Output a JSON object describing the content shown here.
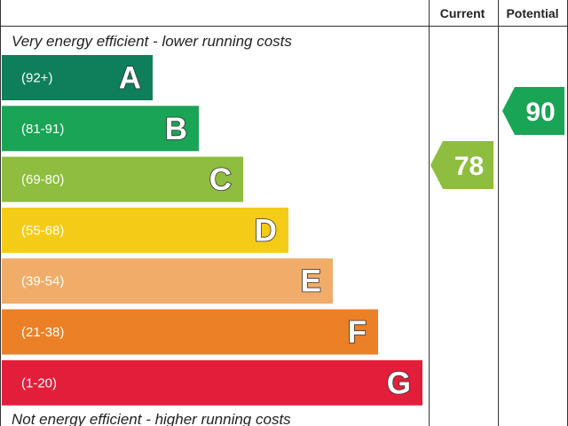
{
  "chart_data": {
    "type": "bar",
    "headers": {
      "current": "Current",
      "potential": "Potential"
    },
    "top_caption": "Very energy efficient - lower running costs",
    "bottom_caption": "Not energy efficient - higher running costs",
    "bands": [
      {
        "letter": "A",
        "range": "(92+)",
        "min": 92,
        "max": 100,
        "color": "#0e7f5a"
      },
      {
        "letter": "B",
        "range": "(81-91)",
        "min": 81,
        "max": 91,
        "color": "#1aa455"
      },
      {
        "letter": "C",
        "range": "(69-80)",
        "min": 69,
        "max": 80,
        "color": "#8ebd3f"
      },
      {
        "letter": "D",
        "range": "(55-68)",
        "min": 55,
        "max": 68,
        "color": "#f4cc18"
      },
      {
        "letter": "E",
        "range": "(39-54)",
        "min": 39,
        "max": 54,
        "color": "#f1ac6a"
      },
      {
        "letter": "F",
        "range": "(21-38)",
        "min": 21,
        "max": 38,
        "color": "#ec8027"
      },
      {
        "letter": "G",
        "range": "(1-20)",
        "min": 1,
        "max": 20,
        "color": "#e21e3a"
      }
    ],
    "current": {
      "value": 78,
      "band": "C",
      "color": "#8ebd3f"
    },
    "potential": {
      "value": 90,
      "band": "B",
      "color": "#1aa455"
    }
  }
}
